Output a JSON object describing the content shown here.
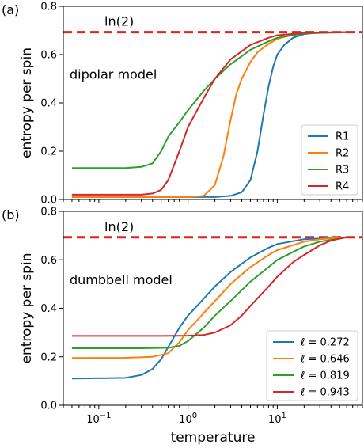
{
  "chart_data": [
    {
      "type": "line",
      "panel_label": "(a)",
      "annotation": "dipolar model",
      "reference_line": {
        "label": "ln(2)",
        "value": 0.693,
        "color": "#e6211c"
      },
      "ylabel": "entropy per spin",
      "xlabel": "",
      "xscale": "log",
      "xlim": [
        0.04,
        90
      ],
      "ylim": [
        0,
        0.8
      ],
      "yticks": [
        "0.0",
        "0.2",
        "0.4",
        "0.6",
        "0.8"
      ],
      "grid": false,
      "legend_position": "lower-right",
      "series": [
        {
          "name": "R1",
          "color": "#1f77b4",
          "x": [
            0.05,
            1,
            2,
            3,
            4,
            5,
            6,
            7,
            8,
            9,
            10,
            12,
            15,
            20,
            30,
            60
          ],
          "y": [
            0.01,
            0.01,
            0.01,
            0.015,
            0.03,
            0.08,
            0.2,
            0.35,
            0.47,
            0.55,
            0.6,
            0.64,
            0.67,
            0.685,
            0.692,
            0.693
          ]
        },
        {
          "name": "R2",
          "color": "#ff7f0e",
          "x": [
            0.05,
            1,
            1.5,
            2,
            2.5,
            3,
            3.5,
            4,
            5,
            6,
            8,
            10,
            15,
            20,
            30,
            60
          ],
          "y": [
            0.01,
            0.01,
            0.015,
            0.06,
            0.18,
            0.33,
            0.44,
            0.5,
            0.57,
            0.61,
            0.645,
            0.665,
            0.683,
            0.689,
            0.692,
            0.693
          ]
        },
        {
          "name": "R3",
          "color": "#2ca02c",
          "x": [
            0.05,
            0.2,
            0.3,
            0.4,
            0.5,
            0.6,
            0.8,
            1,
            1.5,
            2,
            3,
            5,
            8,
            10,
            20,
            60
          ],
          "y": [
            0.13,
            0.13,
            0.135,
            0.15,
            0.2,
            0.26,
            0.32,
            0.37,
            0.45,
            0.5,
            0.56,
            0.62,
            0.655,
            0.67,
            0.688,
            0.693
          ]
        },
        {
          "name": "R4",
          "color": "#d62728",
          "x": [
            0.05,
            0.3,
            0.4,
            0.5,
            0.6,
            0.8,
            1,
            1.5,
            2,
            3,
            5,
            8,
            10,
            20,
            60
          ],
          "y": [
            0.02,
            0.02,
            0.025,
            0.04,
            0.08,
            0.2,
            0.3,
            0.42,
            0.5,
            0.58,
            0.64,
            0.67,
            0.68,
            0.69,
            0.693
          ]
        }
      ]
    },
    {
      "type": "line",
      "panel_label": "(b)",
      "annotation": "dumbbell model",
      "reference_line": {
        "label": "ln(2)",
        "value": 0.693,
        "color": "#e6211c"
      },
      "ylabel": "entropy per spin",
      "xlabel": "temperature",
      "xscale": "log",
      "xlim": [
        0.04,
        90
      ],
      "ylim": [
        0,
        0.8
      ],
      "xticks": [
        {
          "base": "10",
          "exp": "−1",
          "value": 0.1
        },
        {
          "base": "10",
          "exp": "0",
          "value": 1
        },
        {
          "base": "10",
          "exp": "1",
          "value": 10
        }
      ],
      "yticks": [
        "0.0",
        "0.2",
        "0.4",
        "0.6",
        "0.8"
      ],
      "grid": false,
      "legend_position": "lower-right",
      "legend_prefix": "ℓ = ",
      "series": [
        {
          "name": "0.272",
          "color": "#1f77b4",
          "x": [
            0.05,
            0.2,
            0.3,
            0.4,
            0.5,
            0.6,
            0.8,
            1,
            1.5,
            2,
            3,
            5,
            8,
            10,
            20,
            60
          ],
          "y": [
            0.11,
            0.113,
            0.125,
            0.15,
            0.19,
            0.24,
            0.32,
            0.37,
            0.44,
            0.49,
            0.55,
            0.61,
            0.65,
            0.665,
            0.685,
            0.693
          ]
        },
        {
          "name": "0.646",
          "color": "#ff7f0e",
          "x": [
            0.05,
            0.2,
            0.4,
            0.6,
            0.8,
            1,
            1.5,
            2,
            3,
            5,
            8,
            10,
            20,
            30,
            60
          ],
          "y": [
            0.195,
            0.196,
            0.2,
            0.215,
            0.26,
            0.31,
            0.38,
            0.43,
            0.5,
            0.57,
            0.62,
            0.64,
            0.675,
            0.685,
            0.693
          ]
        },
        {
          "name": "0.819",
          "color": "#2ca02c",
          "x": [
            0.05,
            0.3,
            0.6,
            0.8,
            1,
            1.5,
            2,
            3,
            5,
            8,
            10,
            20,
            30,
            60
          ],
          "y": [
            0.235,
            0.235,
            0.237,
            0.245,
            0.265,
            0.32,
            0.37,
            0.43,
            0.51,
            0.57,
            0.6,
            0.655,
            0.675,
            0.693
          ]
        },
        {
          "name": "0.943",
          "color": "#d62728",
          "x": [
            0.05,
            0.5,
            1,
            1.5,
            2,
            3,
            4,
            5,
            8,
            10,
            15,
            20,
            30,
            40,
            60
          ],
          "y": [
            0.286,
            0.286,
            0.287,
            0.29,
            0.3,
            0.33,
            0.37,
            0.41,
            0.49,
            0.53,
            0.59,
            0.62,
            0.66,
            0.68,
            0.693
          ]
        }
      ]
    }
  ]
}
